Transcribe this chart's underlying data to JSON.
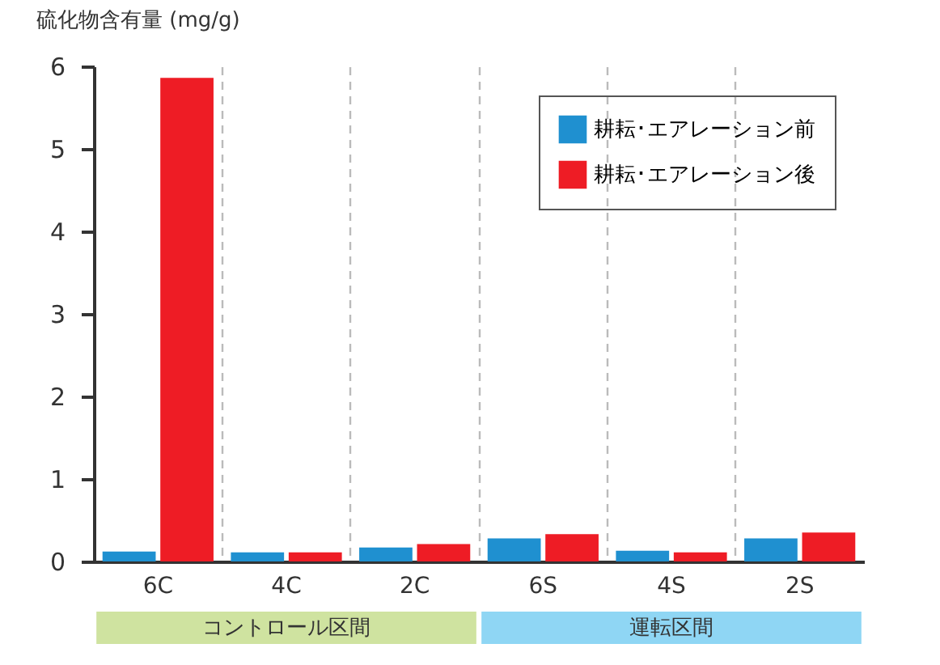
{
  "chart_data": {
    "type": "bar",
    "ylabel": "硫化物含有量 (mg/g)",
    "categories": [
      "6C",
      "4C",
      "2C",
      "6S",
      "4S",
      "2S"
    ],
    "series": [
      {
        "name": "耕耘･エアレーション前",
        "color": "#1f90d0",
        "values": [
          0.12,
          0.11,
          0.17,
          0.28,
          0.13,
          0.28
        ]
      },
      {
        "name": "耕耘･エアレーション後",
        "color": "#ee1c25",
        "values": [
          5.86,
          0.11,
          0.21,
          0.33,
          0.11,
          0.35
        ]
      }
    ],
    "ylim": [
      0,
      6
    ],
    "yticks": [
      0,
      1,
      2,
      3,
      4,
      5,
      6
    ],
    "grid": "x",
    "legend": "top right",
    "annotations": [
      "コントロール区間",
      "運転区間"
    ]
  }
}
